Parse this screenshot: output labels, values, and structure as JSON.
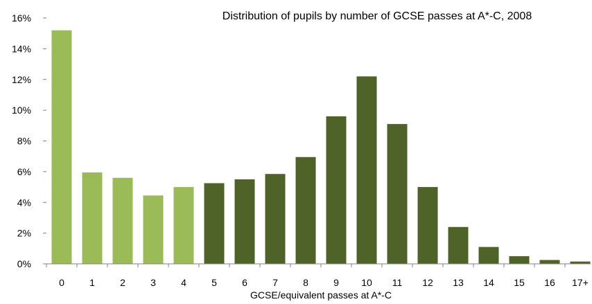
{
  "chart_data": {
    "type": "bar",
    "title": "Distribution of pupils by number of GCSE passes at A*-C, 2008",
    "xlabel": "GCSE/equivalent passes at A*-C",
    "ylabel": "",
    "categories": [
      "0",
      "1",
      "2",
      "3",
      "4",
      "5",
      "6",
      "7",
      "8",
      "9",
      "10",
      "11",
      "12",
      "13",
      "14",
      "15",
      "16",
      "17+"
    ],
    "values": [
      15.2,
      5.95,
      5.6,
      4.45,
      5.0,
      5.25,
      5.5,
      5.85,
      6.95,
      9.6,
      12.2,
      9.1,
      5.0,
      2.4,
      1.1,
      0.5,
      0.25,
      0.15
    ],
    "ylim": [
      0,
      16
    ],
    "yticks": [
      0,
      2,
      4,
      6,
      8,
      10,
      12,
      14,
      16
    ],
    "ytick_labels": [
      "0%",
      "2%",
      "4%",
      "6%",
      "8%",
      "10%",
      "12%",
      "14%",
      "16%"
    ],
    "grid": false,
    "colors": {
      "light_green": "#9BBB59",
      "dark_green": "#4F6228",
      "axis": "#808080"
    },
    "bar_color_groups": [
      "light_green",
      "light_green",
      "light_green",
      "light_green",
      "light_green",
      "dark_green",
      "dark_green",
      "dark_green",
      "dark_green",
      "dark_green",
      "dark_green",
      "dark_green",
      "dark_green",
      "dark_green",
      "dark_green",
      "dark_green",
      "dark_green",
      "dark_green"
    ]
  }
}
